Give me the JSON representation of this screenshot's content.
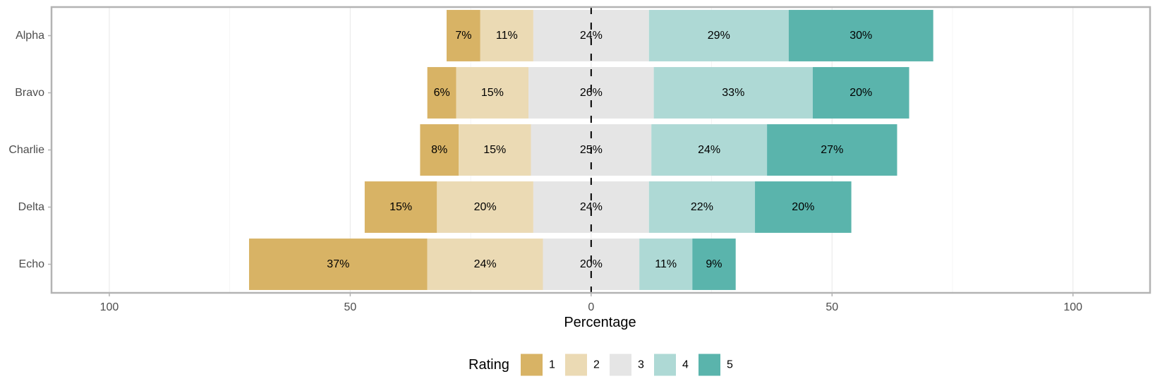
{
  "chart_data": {
    "type": "bar",
    "orientation": "horizontal",
    "stacking": "diverging",
    "xlabel": "Percentage",
    "xlim": [
      -112,
      116
    ],
    "xticks": [
      {
        "value": -100,
        "label": "100"
      },
      {
        "value": -50,
        "label": "50"
      },
      {
        "value": 0,
        "label": "0"
      },
      {
        "value": 50,
        "label": "50"
      },
      {
        "value": 100,
        "label": "100"
      }
    ],
    "categories": [
      "Alpha",
      "Bravo",
      "Charlie",
      "Delta",
      "Echo"
    ],
    "series": [
      {
        "name": "1",
        "color": "#d8b365",
        "values": [
          7,
          6,
          8,
          15,
          37
        ],
        "labels": [
          "7%",
          "6%",
          "8%",
          "15%",
          "37%"
        ]
      },
      {
        "name": "2",
        "color": "#ebdab4",
        "values": [
          11,
          15,
          15,
          20,
          24
        ],
        "labels": [
          "11%",
          "15%",
          "15%",
          "20%",
          "24%"
        ]
      },
      {
        "name": "3",
        "color": "#e5e5e5",
        "values": [
          24,
          26,
          25,
          24,
          20
        ],
        "labels": [
          "24%",
          "26%",
          "25%",
          "24%",
          "20%"
        ]
      },
      {
        "name": "4",
        "color": "#aed9d5",
        "values": [
          29,
          33,
          24,
          22,
          11
        ],
        "labels": [
          "29%",
          "33%",
          "24%",
          "22%",
          "11%"
        ]
      },
      {
        "name": "5",
        "color": "#5ab4ac",
        "values": [
          30,
          20,
          27,
          20,
          9
        ],
        "labels": [
          "30%",
          "20%",
          "27%",
          "20%",
          "9%"
        ]
      }
    ],
    "legend": {
      "title": "Rating",
      "position": "bottom"
    },
    "grid": true
  }
}
